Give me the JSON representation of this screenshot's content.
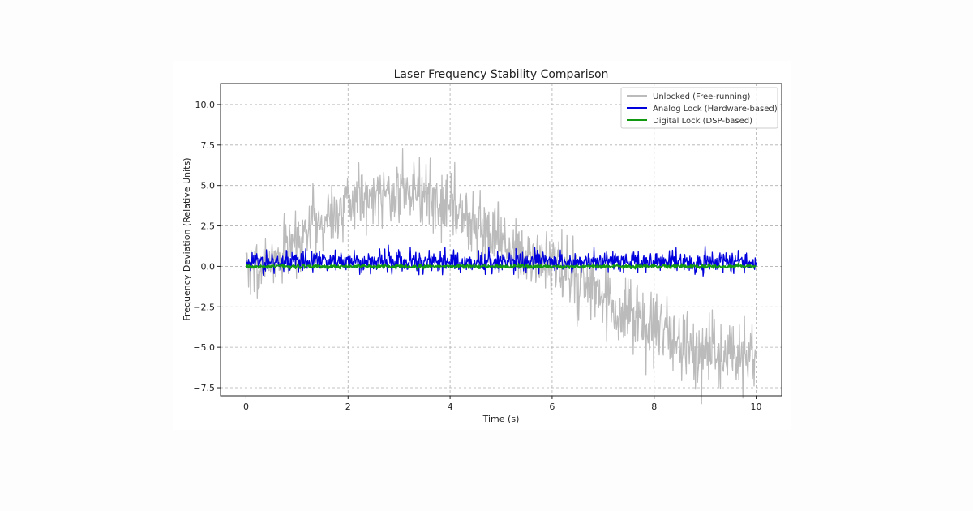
{
  "chart_data": {
    "type": "line",
    "title": "Laser Frequency Stability Comparison",
    "xlabel": "Time (s)",
    "ylabel": "Frequency Deviation (Relative Units)",
    "xlim": [
      -0.5,
      10.5
    ],
    "ylim": [
      -8.0,
      11.3
    ],
    "grid": true,
    "legend_position": "top-right",
    "x_ticks": [
      0,
      2,
      4,
      6,
      8,
      10
    ],
    "x_tick_labels": [
      "0",
      "2",
      "4",
      "6",
      "8",
      "10"
    ],
    "y_ticks": [
      10.0,
      7.5,
      5.0,
      2.5,
      0.0,
      -2.5,
      -5.0,
      -7.5
    ],
    "y_tick_labels": [
      "10.0",
      "7.5",
      "5.0",
      "2.5",
      "0.0",
      "−2.5",
      "−5.0",
      "−7.5"
    ],
    "series": [
      {
        "name": "Unlocked (Free-running)",
        "color": "#bbbbbb",
        "x": [
          0,
          0.25,
          0.5,
          0.75,
          1.0,
          1.25,
          1.5,
          1.75,
          2.0,
          2.25,
          2.5,
          2.75,
          3.0,
          3.25,
          3.5,
          3.75,
          4.0,
          4.25,
          4.5,
          4.75,
          5.0,
          5.25,
          5.5,
          5.75,
          6.0,
          6.25,
          6.5,
          6.75,
          7.0,
          7.25,
          7.5,
          7.75,
          8.0,
          8.25,
          8.5,
          8.75,
          9.0,
          9.25,
          9.5,
          9.75,
          10.0
        ],
        "y": [
          0.0,
          -0.3,
          0.5,
          1.0,
          1.8,
          2.5,
          3.0,
          3.5,
          4.0,
          4.3,
          4.5,
          4.6,
          4.7,
          4.6,
          4.4,
          4.2,
          3.8,
          3.2,
          2.6,
          2.0,
          1.3,
          0.8,
          0.5,
          0.3,
          0.0,
          -0.4,
          -0.9,
          -1.5,
          -2.2,
          -2.8,
          -3.2,
          -3.6,
          -4.0,
          -4.4,
          -4.8,
          -5.1,
          -5.3,
          -5.5,
          -5.6,
          -5.7,
          -5.6
        ]
      },
      {
        "name": "Analog Lock (Hardware-based)",
        "color": "#0000dd",
        "x": [
          0,
          10
        ],
        "y": [
          0.3,
          0.3
        ]
      },
      {
        "name": "Digital Lock (DSP-based)",
        "color": "#119911",
        "x": [
          0,
          10
        ],
        "y": [
          0.0,
          0.0
        ]
      }
    ]
  }
}
